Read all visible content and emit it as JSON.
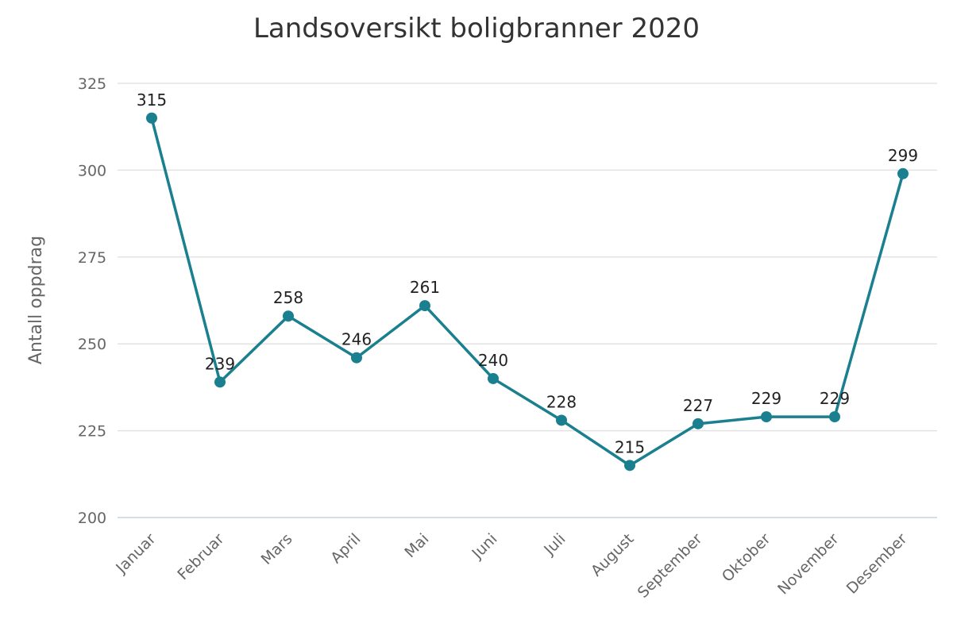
{
  "chart_data": {
    "type": "line",
    "title": "Landsoversikt boligbranner 2020",
    "xlabel": "",
    "ylabel": "Antall oppdrag",
    "categories": [
      "Januar",
      "Februar",
      "Mars",
      "April",
      "Mai",
      "Juni",
      "Juli",
      "August",
      "September",
      "Oktober",
      "November",
      "Desember"
    ],
    "series": [
      {
        "values": [
          315,
          239,
          258,
          246,
          261,
          240,
          228,
          215,
          227,
          229,
          229,
          299
        ],
        "color": "#1a7f8e"
      }
    ],
    "ylim": [
      200,
      325
    ],
    "yticks": [
      200,
      225,
      250,
      275,
      300,
      325
    ],
    "grid": true,
    "legend": "none",
    "data_labels": true
  }
}
